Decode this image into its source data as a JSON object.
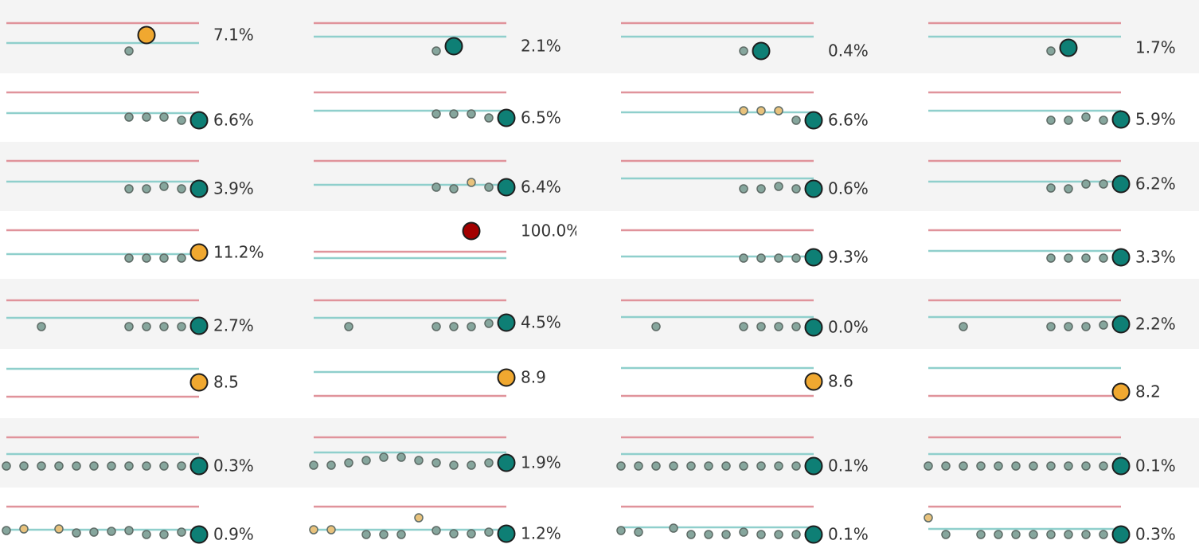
{
  "rows": [
    {
      "cells": [
        {
          "label": "7.1%",
          "upper": 51,
          "target": 26,
          "values": [
            null,
            null,
            null,
            null,
            null,
            null,
            null,
            16,
            36,
            null,
            null,
            null
          ],
          "colors": [
            null,
            null,
            null,
            null,
            null,
            null,
            null,
            "#86a69d",
            "#f0a830",
            null,
            null,
            null
          ]
        },
        {
          "label": "2.1%",
          "upper": 51,
          "target": 34,
          "values": [
            null,
            null,
            null,
            null,
            null,
            null,
            null,
            16,
            22,
            null,
            null,
            null
          ],
          "colors": [
            null,
            null,
            null,
            null,
            null,
            null,
            null,
            "#86a69d",
            "#0e7f75",
            null,
            null,
            null
          ]
        },
        {
          "label": "0.4%",
          "upper": 51,
          "target": 34,
          "values": [
            null,
            null,
            null,
            null,
            null,
            null,
            null,
            16,
            16,
            null,
            null,
            null
          ],
          "colors": [
            null,
            null,
            null,
            null,
            null,
            null,
            null,
            "#86a69d",
            "#0e7f75",
            null,
            null,
            null
          ]
        },
        {
          "label": "1.7%",
          "upper": 51,
          "target": 34,
          "values": [
            null,
            null,
            null,
            null,
            null,
            null,
            null,
            16,
            20,
            null,
            null,
            null
          ],
          "colors": [
            null,
            null,
            null,
            null,
            null,
            null,
            null,
            "#86a69d",
            "#0e7f75",
            null,
            null,
            null
          ]
        }
      ]
    },
    {
      "cells": [
        {
          "label": "6.6%",
          "upper": 56,
          "target": 30,
          "values": [
            null,
            null,
            null,
            null,
            null,
            null,
            null,
            25,
            25,
            25,
            21,
            21
          ],
          "colors": [
            null,
            null,
            null,
            null,
            null,
            null,
            null,
            "#86a69d",
            "#86a69d",
            "#86a69d",
            "#86a69d",
            "#0e7f75"
          ]
        },
        {
          "label": "6.5%",
          "upper": 56,
          "target": 33,
          "values": [
            null,
            null,
            null,
            null,
            null,
            null,
            null,
            29,
            29,
            29,
            24,
            24
          ],
          "colors": [
            null,
            null,
            null,
            null,
            null,
            null,
            null,
            "#86a69d",
            "#86a69d",
            "#86a69d",
            "#86a69d",
            "#0e7f75"
          ]
        },
        {
          "label": "6.6%",
          "upper": 56,
          "target": 31,
          "values": [
            null,
            null,
            null,
            null,
            null,
            null,
            null,
            33,
            33,
            33,
            21,
            21
          ],
          "colors": [
            null,
            null,
            null,
            null,
            null,
            null,
            null,
            "#e8c27c",
            "#e8c27c",
            "#e8c27c",
            "#86a69d",
            "#0e7f75"
          ]
        },
        {
          "label": "5.9%",
          "upper": 56,
          "target": 33,
          "values": [
            null,
            null,
            null,
            null,
            null,
            null,
            null,
            21,
            21,
            25,
            21,
            22
          ],
          "colors": [
            null,
            null,
            null,
            null,
            null,
            null,
            null,
            "#86a69d",
            "#86a69d",
            "#86a69d",
            "#86a69d",
            "#0e7f75"
          ]
        }
      ]
    },
    {
      "cells": [
        {
          "label": "3.9%",
          "upper": 56,
          "target": 30,
          "values": [
            null,
            null,
            null,
            null,
            null,
            null,
            null,
            21,
            21,
            24,
            21,
            21
          ],
          "colors": [
            null,
            null,
            null,
            null,
            null,
            null,
            null,
            "#86a69d",
            "#86a69d",
            "#86a69d",
            "#86a69d",
            "#0e7f75"
          ]
        },
        {
          "label": "6.4%",
          "upper": 56,
          "target": 26,
          "values": [
            null,
            null,
            null,
            null,
            null,
            null,
            null,
            23,
            21,
            29,
            23,
            23
          ],
          "colors": [
            null,
            null,
            null,
            null,
            null,
            null,
            null,
            "#86a69d",
            "#86a69d",
            "#e8c27c",
            "#86a69d",
            "#0e7f75"
          ]
        },
        {
          "label": "0.6%",
          "upper": 56,
          "target": 34,
          "values": [
            null,
            null,
            null,
            null,
            null,
            null,
            null,
            21,
            21,
            24,
            21,
            21
          ],
          "colors": [
            null,
            null,
            null,
            null,
            null,
            null,
            null,
            "#86a69d",
            "#86a69d",
            "#86a69d",
            "#86a69d",
            "#0e7f75"
          ]
        },
        {
          "label": "6.2%",
          "upper": 56,
          "target": 30,
          "values": [
            null,
            null,
            null,
            null,
            null,
            null,
            null,
            22,
            21,
            27,
            27,
            27
          ],
          "colors": [
            null,
            null,
            null,
            null,
            null,
            null,
            null,
            "#86a69d",
            "#86a69d",
            "#86a69d",
            "#86a69d",
            "#0e7f75"
          ]
        }
      ]
    },
    {
      "cells": [
        {
          "label": "11.2%",
          "upper": 56,
          "target": 26,
          "values": [
            null,
            null,
            null,
            null,
            null,
            null,
            null,
            21,
            21,
            21,
            21,
            28
          ],
          "colors": [
            null,
            null,
            null,
            null,
            null,
            null,
            null,
            "#86a69d",
            "#86a69d",
            "#86a69d",
            "#86a69d",
            "#f0a830"
          ]
        },
        {
          "label": "100.0%",
          "upper": 29,
          "target": 21,
          "values": [
            null,
            null,
            null,
            null,
            null,
            null,
            null,
            null,
            null,
            55,
            null,
            null
          ],
          "colors": [
            null,
            null,
            null,
            null,
            null,
            null,
            null,
            null,
            null,
            "#a30000",
            null,
            null
          ]
        },
        {
          "label": "9.3%",
          "upper": 56,
          "target": 23,
          "values": [
            null,
            null,
            null,
            null,
            null,
            null,
            null,
            21,
            21,
            21,
            21,
            22
          ],
          "colors": [
            null,
            null,
            null,
            null,
            null,
            null,
            null,
            "#86a69d",
            "#86a69d",
            "#86a69d",
            "#86a69d",
            "#0e7f75"
          ]
        },
        {
          "label": "3.3%",
          "upper": 56,
          "target": 30,
          "values": [
            null,
            null,
            null,
            null,
            null,
            null,
            null,
            21,
            21,
            21,
            21,
            22
          ],
          "colors": [
            null,
            null,
            null,
            null,
            null,
            null,
            null,
            "#86a69d",
            "#86a69d",
            "#86a69d",
            "#86a69d",
            "#0e7f75"
          ]
        }
      ]
    },
    {
      "cells": [
        {
          "label": "2.7%",
          "upper": 53,
          "target": 31,
          "values": [
            null,
            null,
            20,
            null,
            null,
            null,
            null,
            20,
            20,
            20,
            20,
            21
          ],
          "colors": [
            null,
            null,
            "#86a69d",
            null,
            null,
            null,
            null,
            "#86a69d",
            "#86a69d",
            "#86a69d",
            "#86a69d",
            "#0e7f75"
          ]
        },
        {
          "label": "4.5%",
          "upper": 53,
          "target": 31,
          "values": [
            null,
            null,
            20,
            null,
            null,
            null,
            null,
            20,
            20,
            20,
            24,
            25
          ],
          "colors": [
            null,
            null,
            "#86a69d",
            null,
            null,
            null,
            null,
            "#86a69d",
            "#86a69d",
            "#86a69d",
            "#86a69d",
            "#0e7f75"
          ]
        },
        {
          "label": "0.0%",
          "upper": 53,
          "target": 32,
          "values": [
            null,
            null,
            20,
            null,
            null,
            null,
            null,
            20,
            20,
            20,
            20,
            19
          ],
          "colors": [
            null,
            null,
            "#86a69d",
            null,
            null,
            null,
            null,
            "#86a69d",
            "#86a69d",
            "#86a69d",
            "#86a69d",
            "#0e7f75"
          ]
        },
        {
          "label": "2.2%",
          "upper": 53,
          "target": 32,
          "values": [
            null,
            null,
            20,
            null,
            null,
            null,
            null,
            20,
            20,
            20,
            22,
            23
          ],
          "colors": [
            null,
            null,
            "#86a69d",
            null,
            null,
            null,
            null,
            "#86a69d",
            "#86a69d",
            "#86a69d",
            "#86a69d",
            "#0e7f75"
          ]
        }
      ]
    },
    {
      "cells": [
        {
          "label": "8.5",
          "upper": 20,
          "target": 55,
          "values": [
            null,
            null,
            null,
            null,
            null,
            null,
            null,
            null,
            null,
            null,
            null,
            38
          ],
          "colors": [
            null,
            null,
            null,
            null,
            null,
            null,
            null,
            null,
            null,
            null,
            null,
            "#f0a830"
          ]
        },
        {
          "label": "8.9",
          "upper": 21,
          "target": 51,
          "values": [
            null,
            null,
            null,
            null,
            null,
            null,
            null,
            null,
            null,
            null,
            null,
            44
          ],
          "colors": [
            null,
            null,
            null,
            null,
            null,
            null,
            null,
            null,
            null,
            null,
            null,
            "#f0a830"
          ]
        },
        {
          "label": "8.6",
          "upper": 21,
          "target": 56,
          "values": [
            null,
            null,
            null,
            null,
            null,
            null,
            null,
            null,
            null,
            null,
            null,
            39
          ],
          "colors": [
            null,
            null,
            null,
            null,
            null,
            null,
            null,
            null,
            null,
            null,
            null,
            "#f0a830"
          ]
        },
        {
          "label": "8.2",
          "upper": 21,
          "target": 56,
          "values": [
            null,
            null,
            null,
            null,
            null,
            null,
            null,
            null,
            null,
            null,
            null,
            26
          ],
          "colors": [
            null,
            null,
            null,
            null,
            null,
            null,
            null,
            null,
            null,
            null,
            null,
            "#f0a830"
          ]
        }
      ]
    },
    {
      "cells": [
        {
          "label": "0.3%",
          "upper": 56,
          "target": 35,
          "values": [
            20,
            20,
            20,
            20,
            20,
            20,
            20,
            20,
            20,
            20,
            20,
            20
          ],
          "colors": [
            "#86a69d",
            "#86a69d",
            "#86a69d",
            "#86a69d",
            "#86a69d",
            "#86a69d",
            "#86a69d",
            "#86a69d",
            "#86a69d",
            "#86a69d",
            "#86a69d",
            "#0e7f75"
          ]
        },
        {
          "label": "1.9%",
          "upper": 56,
          "target": 37,
          "values": [
            21,
            21,
            24,
            27,
            31,
            31,
            27,
            24,
            21,
            21,
            24,
            24
          ],
          "colors": [
            "#86a69d",
            "#86a69d",
            "#86a69d",
            "#86a69d",
            "#86a69d",
            "#86a69d",
            "#86a69d",
            "#86a69d",
            "#86a69d",
            "#86a69d",
            "#86a69d",
            "#0e7f75"
          ]
        },
        {
          "label": "0.1%",
          "upper": 56,
          "target": 35,
          "values": [
            20,
            20,
            20,
            20,
            20,
            20,
            20,
            20,
            20,
            20,
            20,
            20
          ],
          "colors": [
            "#86a69d",
            "#86a69d",
            "#86a69d",
            "#86a69d",
            "#86a69d",
            "#86a69d",
            "#86a69d",
            "#86a69d",
            "#86a69d",
            "#86a69d",
            "#86a69d",
            "#0e7f75"
          ]
        },
        {
          "label": "0.1%",
          "upper": 56,
          "target": 35,
          "values": [
            20,
            20,
            20,
            20,
            20,
            20,
            20,
            20,
            20,
            20,
            20,
            20
          ],
          "colors": [
            "#86a69d",
            "#86a69d",
            "#86a69d",
            "#86a69d",
            "#86a69d",
            "#86a69d",
            "#86a69d",
            "#86a69d",
            "#86a69d",
            "#86a69d",
            "#86a69d",
            "#0e7f75"
          ]
        }
      ]
    },
    {
      "cells": [
        {
          "label": "0.9%",
          "upper": 56,
          "target": 27,
          "values": [
            26,
            28,
            null,
            28,
            23,
            24,
            25,
            26,
            21,
            21,
            24,
            21
          ],
          "colors": [
            "#86a69d",
            "#e8c27c",
            null,
            "#e8c27c",
            "#86a69d",
            "#86a69d",
            "#86a69d",
            "#86a69d",
            "#86a69d",
            "#86a69d",
            "#86a69d",
            "#0e7f75"
          ]
        },
        {
          "label": "1.2%",
          "upper": 56,
          "target": 27,
          "values": [
            27,
            27,
            null,
            21,
            21,
            21,
            42,
            26,
            22,
            22,
            24,
            22
          ],
          "colors": [
            "#e8c27c",
            "#e8c27c",
            null,
            "#86a69d",
            "#86a69d",
            "#86a69d",
            "#e8c27c",
            "#86a69d",
            "#86a69d",
            "#86a69d",
            "#86a69d",
            "#0e7f75"
          ]
        },
        {
          "label": "0.1%",
          "upper": 56,
          "target": 30,
          "values": [
            26,
            24,
            null,
            29,
            21,
            21,
            21,
            24,
            21,
            21,
            21,
            21
          ],
          "colors": [
            "#86a69d",
            "#86a69d",
            null,
            "#86a69d",
            "#86a69d",
            "#86a69d",
            "#86a69d",
            "#86a69d",
            "#86a69d",
            "#86a69d",
            "#86a69d",
            "#0e7f75"
          ]
        },
        {
          "label": "0.3%",
          "upper": 56,
          "target": 28,
          "values": [
            42,
            21,
            null,
            21,
            21,
            21,
            21,
            21,
            21,
            21,
            21,
            21
          ],
          "colors": [
            "#e8c27c",
            "#86a69d",
            null,
            "#86a69d",
            "#86a69d",
            "#86a69d",
            "#86a69d",
            "#86a69d",
            "#86a69d",
            "#86a69d",
            "#86a69d",
            "#0e7f75"
          ]
        }
      ]
    }
  ]
}
